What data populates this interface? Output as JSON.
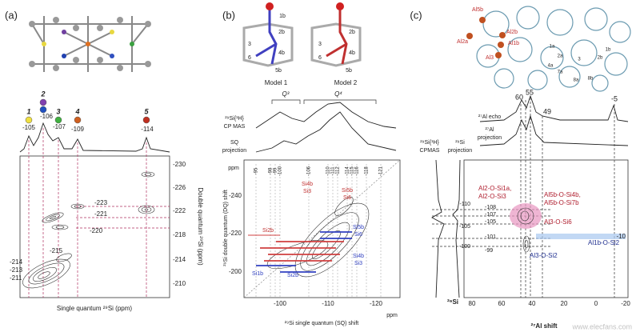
{
  "panel_a": {
    "label": "(a)",
    "peak_numbers": [
      "1",
      "2",
      "3",
      "4",
      "5"
    ],
    "peak_shifts": [
      "-105",
      "-106",
      "-107",
      "-109",
      "-114"
    ],
    "y_ticks": [
      "-230",
      "-226",
      "-222",
      "-218",
      "-214",
      "-210"
    ],
    "y_axis_label": "Double quantum ²⁹Si (ppm)",
    "x_axis_label": "Single quantum ²⁹Si (ppm)",
    "cross_peaks": [
      "-223",
      "-221",
      "-220",
      "-215",
      "-214",
      "-213",
      "-211"
    ]
  },
  "panel_b": {
    "label": "(b)",
    "model_1_sites": [
      "1b",
      "2b",
      "3",
      "6",
      "4b",
      "5b"
    ],
    "model_2_sites": [
      "2b",
      "3",
      "6",
      "4b",
      "5b"
    ],
    "models": [
      "Model 1",
      "Model 2"
    ],
    "regions": [
      "Q³",
      "Q⁴"
    ],
    "cp_mas_label": [
      "²⁹Si{¹H}",
      "CP MAS"
    ],
    "sq_label": [
      "SQ",
      "projection"
    ],
    "y_unit": "ppm",
    "y_ticks": [
      "-240",
      "-220",
      "-200"
    ],
    "y_axis_label": "²⁹Si double quantum (DQ) shift",
    "peak_labels": [
      "-95",
      "-98",
      "-99",
      "-100",
      "-106",
      "-110",
      "-111",
      "-112",
      "-114",
      "-115",
      "-116",
      "-118",
      "-121"
    ],
    "x_ticks": [
      "-100",
      "-110",
      "-120"
    ],
    "x_unit": "ppm",
    "x_axis_label": "²⁹Si single quantum (SQ) shift",
    "red_assignments": [
      "Si4b",
      "Si3",
      "Si5b",
      "Si6",
      "Si2b"
    ],
    "blue_assignments": [
      "Si5b",
      "Si6",
      "Si4b",
      "Si3",
      "Si1b",
      "Si2b"
    ]
  },
  "panel_c": {
    "label": "(c)",
    "al_sites": [
      "Al5b",
      "Al2a",
      "Al2b",
      "Al1b",
      "Al3"
    ],
    "site_labels": [
      "1a",
      "2a",
      "3",
      "1b",
      "2b",
      "4a",
      "7a",
      "8a",
      "8b"
    ],
    "al_shifts": [
      "60",
      "55",
      "49",
      "-5"
    ],
    "echo_label": "²⁷Al echo",
    "projection_label": [
      "²⁷Al",
      "projection"
    ],
    "cpmas_label": [
      "²⁹Si{¹H}",
      "CPMAS"
    ],
    "si_projection_label": [
      "²⁹Si",
      "projection"
    ],
    "y_ticks": [
      "-110",
      "-105",
      "-100"
    ],
    "si_shifts": [
      "-108",
      "-107",
      "-105",
      "-101",
      "-99"
    ],
    "red_assignments": [
      "Al2-O-Si1a,",
      "Al2-O-Si3",
      "Al5b-O-Si4b,",
      "Al5b-O-Si7b",
      "Al3-O-Si6"
    ],
    "blue_assignments": [
      "Al1b-O-Si2",
      "Al3-O-Si2"
    ],
    "blue_shift": "-10",
    "x_ticks": [
      "80",
      "60",
      "40",
      "20",
      "0",
      "-20"
    ],
    "si_axis_label": "²⁹Si",
    "x_axis_label": "²⁷Al shift"
  },
  "watermark": "www.elecfans.com"
}
